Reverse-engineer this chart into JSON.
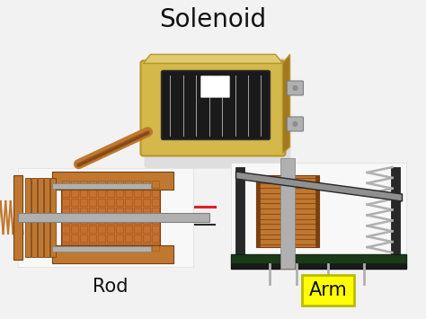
{
  "title": "Solenoid",
  "label_rod": "Rod",
  "label_arm": "Arm",
  "background_color": "#f0f0f0",
  "title_fontsize": 20,
  "label_fontsize": 15,
  "title_color": "#111111",
  "label_color": "#111111",
  "arm_box_color": "#ffff00",
  "arm_box_edgecolor": "#bbbb00",
  "fig_width": 4.74,
  "fig_height": 3.55,
  "dpi": 100
}
